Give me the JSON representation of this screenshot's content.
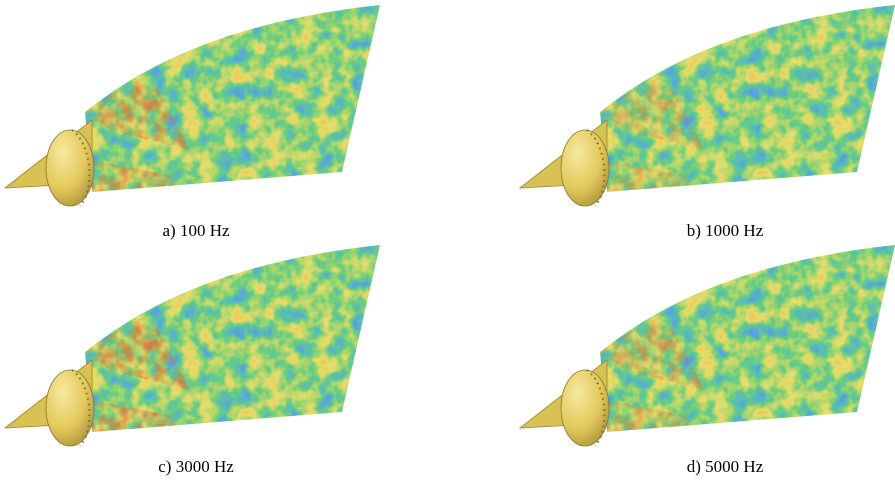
{
  "panels": [
    {
      "caption": "a) 100 Hz"
    },
    {
      "caption": "b) 1000 Hz"
    },
    {
      "caption": "c) 3000 Hz"
    },
    {
      "caption": "d) 5000 Hz"
    }
  ]
}
